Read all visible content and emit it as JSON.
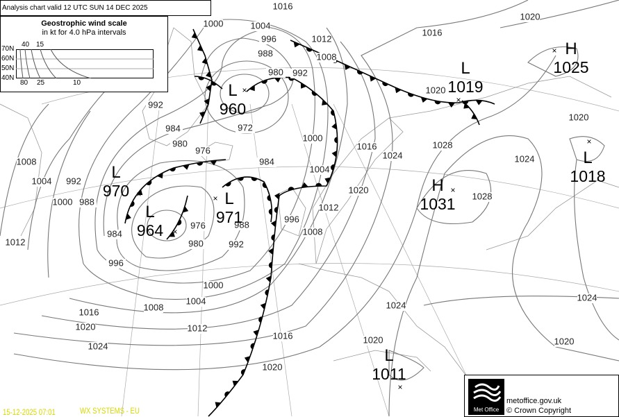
{
  "header": {
    "title": "Analysis chart valid 12 UTC SUN 14  DEC 2025"
  },
  "legend": {
    "title": "Geostrophic wind scale",
    "subtitle": "in kt for 4.0 hPa intervals",
    "latitudes": [
      "70N",
      "60N",
      "50N",
      "40N"
    ],
    "top_speeds": [
      "40",
      "15"
    ],
    "bottom_speeds": [
      "80",
      "25",
      "10"
    ]
  },
  "pressure_centres": [
    {
      "type": "L",
      "value": "960"
    },
    {
      "type": "L",
      "value": "970"
    },
    {
      "type": "L",
      "value": "964"
    },
    {
      "type": "L",
      "value": "971"
    },
    {
      "type": "H",
      "value": "1031"
    },
    {
      "type": "L",
      "value": "1019"
    },
    {
      "type": "H",
      "value": "1025"
    },
    {
      "type": "L",
      "value": "1018"
    },
    {
      "type": "L",
      "value": "1011"
    }
  ],
  "isobar_labels": [
    "1016",
    "1004",
    "996",
    "1000",
    "988",
    "1012",
    "1008",
    "980",
    "992",
    "1016",
    "1020",
    "1020",
    "1028",
    "1028",
    "1024",
    "1024",
    "1020",
    "1016",
    "1020",
    "1012",
    "1004",
    "1000",
    "972",
    "984",
    "992",
    "984",
    "980",
    "976",
    "1008",
    "1004",
    "1000",
    "992",
    "988",
    "1012",
    "984",
    "996",
    "976",
    "980",
    "988",
    "992",
    "996",
    "1000",
    "1004",
    "1008",
    "1012",
    "1016",
    "1020",
    "1024",
    "1016",
    "1020",
    "1020",
    "1024",
    "1024",
    "1020",
    "1008"
  ],
  "footer": {
    "timestamp": "15-12-2025  07:01",
    "system": "WX SYSTEMS - EU"
  },
  "credit": {
    "logo_text": "Met Office",
    "site": "metoffice.gov.uk",
    "copyright": "© Crown Copyright"
  },
  "colors": {
    "footer_text": "#d8d800",
    "isobar": "#777777",
    "front": "#000000"
  }
}
